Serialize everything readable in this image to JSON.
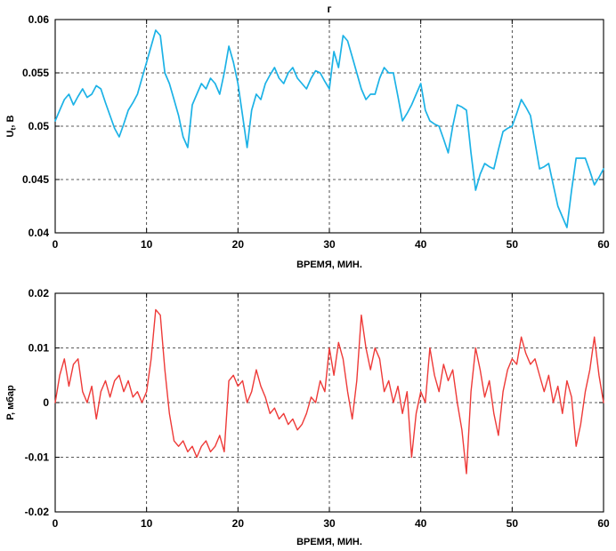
{
  "figure": {
    "background": "#ffffff",
    "axis_color": "#000000",
    "grid_color": "#000000"
  },
  "chart_data": [
    {
      "type": "line",
      "title": "г",
      "xlabel": "ВРЕМЯ, МИН.",
      "ylabel": {
        "pre": "U",
        "sub": "t",
        "post": ", В"
      },
      "xlim": [
        0,
        60
      ],
      "ylim": [
        0.04,
        0.06
      ],
      "xticks": [
        0,
        10,
        20,
        30,
        40,
        50,
        60
      ],
      "xtick_labels": [
        "0",
        "10",
        "20",
        "30",
        "40",
        "50",
        "60"
      ],
      "yticks": [
        0.04,
        0.045,
        0.05,
        0.055,
        0.06
      ],
      "ytick_labels": [
        "0.04",
        "0.045",
        "0.05",
        "0.055",
        "0.06"
      ],
      "grid": true,
      "legend": "none",
      "color": "#1cb2e6",
      "x_start": 0,
      "x_step": 0.5,
      "values": [
        0.0505,
        0.0515,
        0.0525,
        0.053,
        0.052,
        0.0528,
        0.0535,
        0.0527,
        0.053,
        0.0538,
        0.0535,
        0.0522,
        0.051,
        0.0498,
        0.049,
        0.0502,
        0.0515,
        0.0522,
        0.053,
        0.0545,
        0.056,
        0.0575,
        0.059,
        0.0585,
        0.055,
        0.054,
        0.0525,
        0.051,
        0.049,
        0.048,
        0.052,
        0.053,
        0.054,
        0.0535,
        0.0545,
        0.054,
        0.053,
        0.055,
        0.0575,
        0.056,
        0.054,
        0.051,
        0.048,
        0.0515,
        0.053,
        0.0525,
        0.054,
        0.0548,
        0.0555,
        0.0545,
        0.054,
        0.055,
        0.0555,
        0.0545,
        0.054,
        0.0535,
        0.0545,
        0.0552,
        0.055,
        0.0542,
        0.0535,
        0.057,
        0.0555,
        0.0585,
        0.058,
        0.0565,
        0.055,
        0.0535,
        0.0525,
        0.053,
        0.053,
        0.0545,
        0.0555,
        0.055,
        0.055,
        0.0528,
        0.0505,
        0.0512,
        0.052,
        0.053,
        0.054,
        0.0515,
        0.0505,
        0.0502,
        0.05,
        0.0488,
        0.0475,
        0.05,
        0.052,
        0.0518,
        0.0515,
        0.0475,
        0.044,
        0.0455,
        0.0465,
        0.0462,
        0.046,
        0.0478,
        0.0495,
        0.0498,
        0.05,
        0.0512,
        0.0525,
        0.0518,
        0.051,
        0.0485,
        0.046,
        0.0462,
        0.0465,
        0.0445,
        0.0425,
        0.0415,
        0.0405,
        0.044,
        0.047,
        0.047,
        0.047,
        0.0458,
        0.0445,
        0.0452,
        0.046
      ]
    },
    {
      "type": "line",
      "title": "",
      "xlabel": "ВРЕМЯ, МИН.",
      "ylabel": {
        "pre": "Р",
        "sub": "",
        "post": ", мбар"
      },
      "xlim": [
        0,
        60
      ],
      "ylim": [
        -0.02,
        0.02
      ],
      "xticks": [
        0,
        10,
        20,
        30,
        40,
        50,
        60
      ],
      "xtick_labels": [
        "0",
        "10",
        "20",
        "30",
        "40",
        "50",
        "60"
      ],
      "yticks": [
        -0.02,
        -0.01,
        0,
        0.01,
        0.02
      ],
      "ytick_labels": [
        "-0.02",
        "-0.01",
        "0",
        "0.01",
        "0.02"
      ],
      "grid": true,
      "legend": "none",
      "color": "#ee3a38",
      "x_start": 0,
      "x_step": 0.5,
      "values": [
        0.0,
        0.005,
        0.008,
        0.003,
        0.007,
        0.008,
        0.002,
        0.0,
        0.003,
        -0.003,
        0.002,
        0.004,
        0.001,
        0.004,
        0.005,
        0.002,
        0.004,
        0.001,
        0.002,
        0.0,
        0.002,
        0.008,
        0.017,
        0.016,
        0.006,
        -0.002,
        -0.007,
        -0.008,
        -0.007,
        -0.009,
        -0.008,
        -0.01,
        -0.008,
        -0.007,
        -0.009,
        -0.008,
        -0.006,
        -0.009,
        0.004,
        0.005,
        0.003,
        0.004,
        0.0,
        0.002,
        0.006,
        0.003,
        0.001,
        -0.002,
        -0.001,
        -0.003,
        -0.002,
        -0.004,
        -0.003,
        -0.005,
        -0.004,
        -0.002,
        0.001,
        0.0,
        0.004,
        0.002,
        0.01,
        0.005,
        0.011,
        0.008,
        0.002,
        -0.003,
        0.004,
        0.016,
        0.01,
        0.006,
        0.01,
        0.008,
        0.002,
        0.004,
        0.0,
        0.003,
        -0.002,
        0.002,
        -0.01,
        -0.002,
        0.002,
        0.0,
        0.01,
        0.005,
        0.002,
        0.007,
        0.004,
        0.006,
        0.0,
        -0.005,
        -0.013,
        0.002,
        0.01,
        0.006,
        0.001,
        0.004,
        -0.002,
        -0.006,
        0.002,
        0.006,
        0.008,
        0.007,
        0.012,
        0.009,
        0.007,
        0.008,
        0.005,
        0.002,
        0.005,
        0.0,
        0.003,
        -0.002,
        0.004,
        0.001,
        -0.008,
        -0.004,
        0.002,
        0.006,
        0.012,
        0.005,
        0.0
      ]
    }
  ]
}
